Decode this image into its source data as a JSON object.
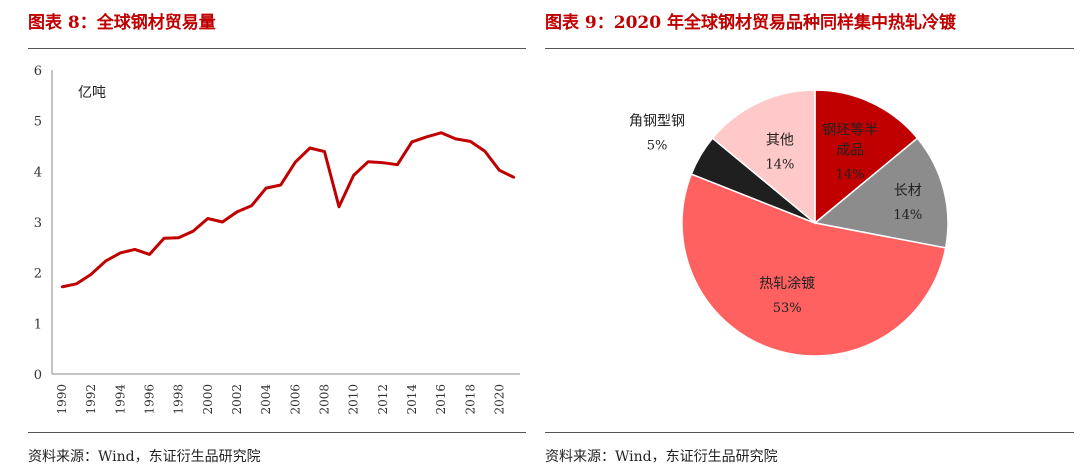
{
  "left": {
    "title": "图表 8：全球钢材贸易量",
    "source": "资料来源：Wind，东证衍生品研究院"
  },
  "right": {
    "title": "图表 9：2020 年全球钢材贸易品种同样集中热轧冷镀",
    "source": "资料来源：Wind，东证衍生品研究院"
  },
  "chart_data": [
    {
      "type": "line",
      "title": "全球钢材贸易量",
      "xlabel": "",
      "ylabel": "亿吨",
      "ylim": [
        0,
        6
      ],
      "yticks": [
        "0",
        "1",
        "2",
        "3",
        "4",
        "5",
        "6"
      ],
      "xticks": [
        "1990",
        "1992",
        "1994",
        "1996",
        "1998",
        "2000",
        "2002",
        "2004",
        "2006",
        "2008",
        "2010",
        "2012",
        "2014",
        "2016",
        "2018",
        "2020"
      ],
      "color": "#c00000",
      "x": [
        1990,
        1991,
        1992,
        1993,
        1994,
        1995,
        1996,
        1997,
        1998,
        1999,
        2000,
        2001,
        2002,
        2003,
        2004,
        2005,
        2006,
        2007,
        2008,
        2009,
        2010,
        2011,
        2012,
        2013,
        2014,
        2015,
        2016,
        2017,
        2018,
        2019,
        2020,
        2021
      ],
      "values": [
        1.72,
        1.78,
        1.97,
        2.23,
        2.39,
        2.46,
        2.36,
        2.68,
        2.69,
        2.82,
        3.07,
        3.0,
        3.2,
        3.32,
        3.67,
        3.73,
        4.18,
        4.46,
        4.39,
        3.3,
        3.92,
        4.19,
        4.17,
        4.13,
        4.58,
        4.68,
        4.76,
        4.64,
        4.59,
        4.4,
        4.02,
        3.88
      ]
    },
    {
      "type": "pie",
      "title": "2020 年全球钢材贸易品种",
      "start": "12 o'clock",
      "direction": "clockwise",
      "slices": [
        {
          "label": "钢坯等半成品",
          "pct_label": "14%",
          "value": 14,
          "color": "#c00000",
          "label_color": "#222"
        },
        {
          "label": "长材",
          "pct_label": "14%",
          "value": 14,
          "color": "#8c8c8c",
          "label_color": "#222"
        },
        {
          "label": "热轧涂镀",
          "pct_label": "53%",
          "value": 53,
          "color": "#ff6161",
          "label_color": "#222"
        },
        {
          "label": "角钢型钢",
          "pct_label": "5%",
          "value": 5,
          "color": "#1f1f1f",
          "label_color": "#222"
        },
        {
          "label": "其他",
          "pct_label": "14%",
          "value": 14,
          "color": "#ffc9c9",
          "label_color": "#222"
        }
      ]
    }
  ]
}
